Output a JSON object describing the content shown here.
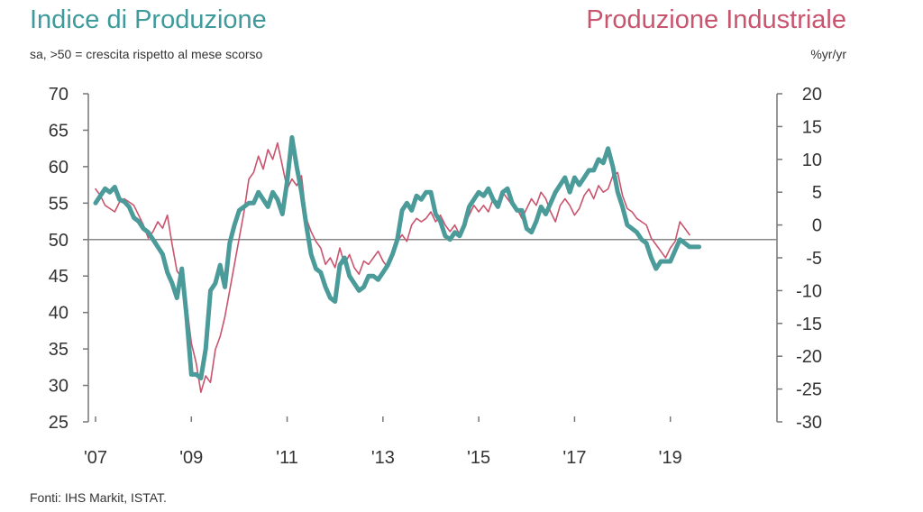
{
  "header": {
    "left_title": "Indice di Produzione",
    "right_title": "Produzione Industriale",
    "left_subtitle": "sa, >50 = crescita rispetto al mese scorso",
    "right_subtitle": "%yr/yr"
  },
  "source": "Fonti: IHS Markit, ISTAT.",
  "chart_data": {
    "type": "line",
    "title": "Indice di Produzione / Produzione Industriale",
    "x_tick_labels": [
      "'07",
      "'09",
      "'11",
      "'13",
      "'15",
      "'17",
      "'19"
    ],
    "x_tick_years": [
      2007,
      2009,
      2011,
      2013,
      2015,
      2017,
      2019
    ],
    "xlim": [
      2007,
      2021
    ],
    "left_axis": {
      "label": "sa, >50 = crescita rispetto al mese scorso",
      "ylim": [
        25,
        70
      ],
      "ticks": [
        70,
        65,
        60,
        55,
        50,
        45,
        40,
        35,
        30,
        25
      ],
      "reference_line": 50
    },
    "right_axis": {
      "label": "%yr/yr",
      "ylim": [
        -30,
        20
      ],
      "ticks": [
        20,
        15,
        10,
        5,
        0,
        -5,
        -10,
        -15,
        -20,
        -25,
        -30
      ]
    },
    "colors": {
      "pmi": "#4a9b99",
      "ip": "#c9546e",
      "axis": "#777777"
    },
    "series": [
      {
        "name": "Indice di Produzione",
        "axis": "left",
        "x": [
          2007.0,
          2007.1,
          2007.2,
          2007.3,
          2007.4,
          2007.5,
          2007.6,
          2007.7,
          2007.8,
          2007.9,
          2008.0,
          2008.1,
          2008.2,
          2008.3,
          2008.4,
          2008.5,
          2008.6,
          2008.7,
          2008.8,
          2008.9,
          2009.0,
          2009.1,
          2009.2,
          2009.3,
          2009.4,
          2009.5,
          2009.6,
          2009.7,
          2009.8,
          2009.9,
          2010.0,
          2010.1,
          2010.2,
          2010.3,
          2010.4,
          2010.5,
          2010.6,
          2010.7,
          2010.8,
          2010.9,
          2011.0,
          2011.1,
          2011.2,
          2011.3,
          2011.4,
          2011.5,
          2011.6,
          2011.7,
          2011.8,
          2011.9,
          2012.0,
          2012.1,
          2012.2,
          2012.3,
          2012.4,
          2012.5,
          2012.6,
          2012.7,
          2012.8,
          2012.9,
          2013.0,
          2013.1,
          2013.2,
          2013.3,
          2013.4,
          2013.5,
          2013.6,
          2013.7,
          2013.8,
          2013.9,
          2014.0,
          2014.1,
          2014.2,
          2014.3,
          2014.4,
          2014.5,
          2014.6,
          2014.7,
          2014.8,
          2014.9,
          2015.0,
          2015.1,
          2015.2,
          2015.3,
          2015.4,
          2015.5,
          2015.6,
          2015.7,
          2015.8,
          2015.9,
          2016.0,
          2016.1,
          2016.2,
          2016.3,
          2016.4,
          2016.5,
          2016.6,
          2016.7,
          2016.8,
          2016.9,
          2017.0,
          2017.1,
          2017.2,
          2017.3,
          2017.4,
          2017.5,
          2017.6,
          2017.7,
          2017.8,
          2017.9,
          2018.0,
          2018.1,
          2018.2,
          2018.3,
          2018.4,
          2018.5,
          2018.6,
          2018.7,
          2018.8,
          2018.9,
          2019.0,
          2019.1,
          2019.2,
          2019.3,
          2019.4,
          2019.5,
          2019.6
        ],
        "values": [
          55.0,
          56.0,
          57.0,
          56.5,
          57.2,
          55.5,
          55.2,
          54.5,
          53.0,
          52.5,
          51.5,
          51.0,
          50.0,
          49.0,
          48.0,
          45.5,
          44.0,
          42.0,
          46.0,
          39.5,
          31.5,
          31.5,
          31.0,
          35.0,
          43.0,
          44.0,
          46.5,
          43.5,
          49.5,
          52.0,
          54.0,
          54.5,
          55.0,
          55.0,
          56.5,
          55.5,
          54.5,
          56.5,
          55.5,
          53.5,
          58.0,
          64.0,
          60.0,
          56.5,
          52.0,
          48.0,
          46.0,
          45.5,
          43.5,
          42.0,
          41.5,
          46.5,
          47.5,
          45.0,
          44.0,
          43.0,
          43.5,
          45.0,
          45.0,
          44.5,
          45.5,
          46.5,
          48.0,
          50.0,
          54.0,
          55.0,
          54.0,
          56.0,
          55.5,
          56.5,
          56.5,
          53.5,
          52.5,
          50.5,
          50.0,
          51.0,
          50.5,
          52.0,
          54.5,
          55.5,
          56.5,
          56.0,
          57.0,
          55.5,
          54.5,
          56.5,
          57.0,
          55.0,
          54.0,
          54.0,
          51.5,
          51.0,
          52.5,
          54.5,
          53.5,
          55.0,
          56.5,
          57.5,
          58.5,
          56.5,
          58.5,
          57.5,
          58.5,
          59.5,
          59.5,
          61.0,
          60.5,
          62.5,
          60.0,
          56.5,
          54.5,
          52.0,
          51.5,
          51.0,
          50.0,
          49.5,
          47.5,
          46.0,
          47.0,
          47.0,
          47.0,
          48.5,
          50.0,
          49.5,
          49.0,
          49.0,
          49.0
        ]
      },
      {
        "name": "Produzione Industriale",
        "axis": "right",
        "x": [
          2007.0,
          2007.1,
          2007.2,
          2007.3,
          2007.4,
          2007.5,
          2007.6,
          2007.7,
          2007.8,
          2007.9,
          2008.0,
          2008.1,
          2008.2,
          2008.3,
          2008.4,
          2008.5,
          2008.6,
          2008.7,
          2008.8,
          2008.9,
          2009.0,
          2009.1,
          2009.2,
          2009.3,
          2009.4,
          2009.5,
          2009.6,
          2009.7,
          2009.8,
          2009.9,
          2010.0,
          2010.1,
          2010.2,
          2010.3,
          2010.4,
          2010.5,
          2010.6,
          2010.7,
          2010.8,
          2010.9,
          2011.0,
          2011.1,
          2011.2,
          2011.3,
          2011.4,
          2011.5,
          2011.6,
          2011.7,
          2011.8,
          2011.9,
          2012.0,
          2012.1,
          2012.2,
          2012.3,
          2012.4,
          2012.5,
          2012.6,
          2012.7,
          2012.8,
          2012.9,
          2013.0,
          2013.1,
          2013.2,
          2013.3,
          2013.4,
          2013.5,
          2013.6,
          2013.7,
          2013.8,
          2013.9,
          2014.0,
          2014.1,
          2014.2,
          2014.3,
          2014.4,
          2014.5,
          2014.6,
          2014.7,
          2014.8,
          2014.9,
          2015.0,
          2015.1,
          2015.2,
          2015.3,
          2015.4,
          2015.5,
          2015.6,
          2015.7,
          2015.8,
          2015.9,
          2016.0,
          2016.1,
          2016.2,
          2016.3,
          2016.4,
          2016.5,
          2016.6,
          2016.7,
          2016.8,
          2016.9,
          2017.0,
          2017.1,
          2017.2,
          2017.3,
          2017.4,
          2017.5,
          2017.6,
          2017.7,
          2017.8,
          2017.9,
          2018.0,
          2018.1,
          2018.2,
          2018.3,
          2018.4,
          2018.5,
          2018.6,
          2018.7,
          2018.8,
          2018.9,
          2019.0,
          2019.1,
          2019.2,
          2019.3,
          2019.4
        ],
        "values": [
          5.5,
          4.5,
          3.0,
          2.5,
          2.0,
          3.5,
          4.0,
          3.5,
          3.0,
          1.5,
          0.0,
          -2.0,
          -1.0,
          0.5,
          -0.5,
          1.5,
          -3.0,
          -7.0,
          -8.0,
          -12.0,
          -18.0,
          -21.0,
          -25.5,
          -23.0,
          -24.0,
          -19.0,
          -17.0,
          -14.0,
          -10.0,
          -6.0,
          -2.0,
          2.0,
          7.0,
          8.0,
          10.5,
          8.5,
          11.5,
          10.0,
          12.5,
          9.0,
          5.5,
          7.0,
          6.0,
          7.5,
          1.0,
          -1.0,
          -2.5,
          -3.5,
          -6.0,
          -5.0,
          -6.5,
          -3.5,
          -6.0,
          -4.5,
          -6.5,
          -7.5,
          -5.5,
          -6.0,
          -5.0,
          -4.0,
          -5.5,
          -6.5,
          -4.0,
          -2.5,
          -1.5,
          -2.5,
          0.0,
          1.0,
          0.5,
          1.0,
          2.0,
          0.5,
          1.5,
          0.0,
          -1.0,
          0.0,
          -1.5,
          0.0,
          1.5,
          3.0,
          2.0,
          3.0,
          2.0,
          4.0,
          3.5,
          5.0,
          4.0,
          3.0,
          2.5,
          1.0,
          2.5,
          4.0,
          3.0,
          5.0,
          4.0,
          2.0,
          0.5,
          3.0,
          4.0,
          3.0,
          1.5,
          2.5,
          4.5,
          5.5,
          4.0,
          6.0,
          5.0,
          5.5,
          7.5,
          8.0,
          4.5,
          2.5,
          2.0,
          1.0,
          0.5,
          0.0,
          -2.0,
          -3.0,
          -4.0,
          -5.0,
          -3.5,
          -2.5,
          0.5,
          -0.5,
          -1.5
        ]
      }
    ]
  }
}
